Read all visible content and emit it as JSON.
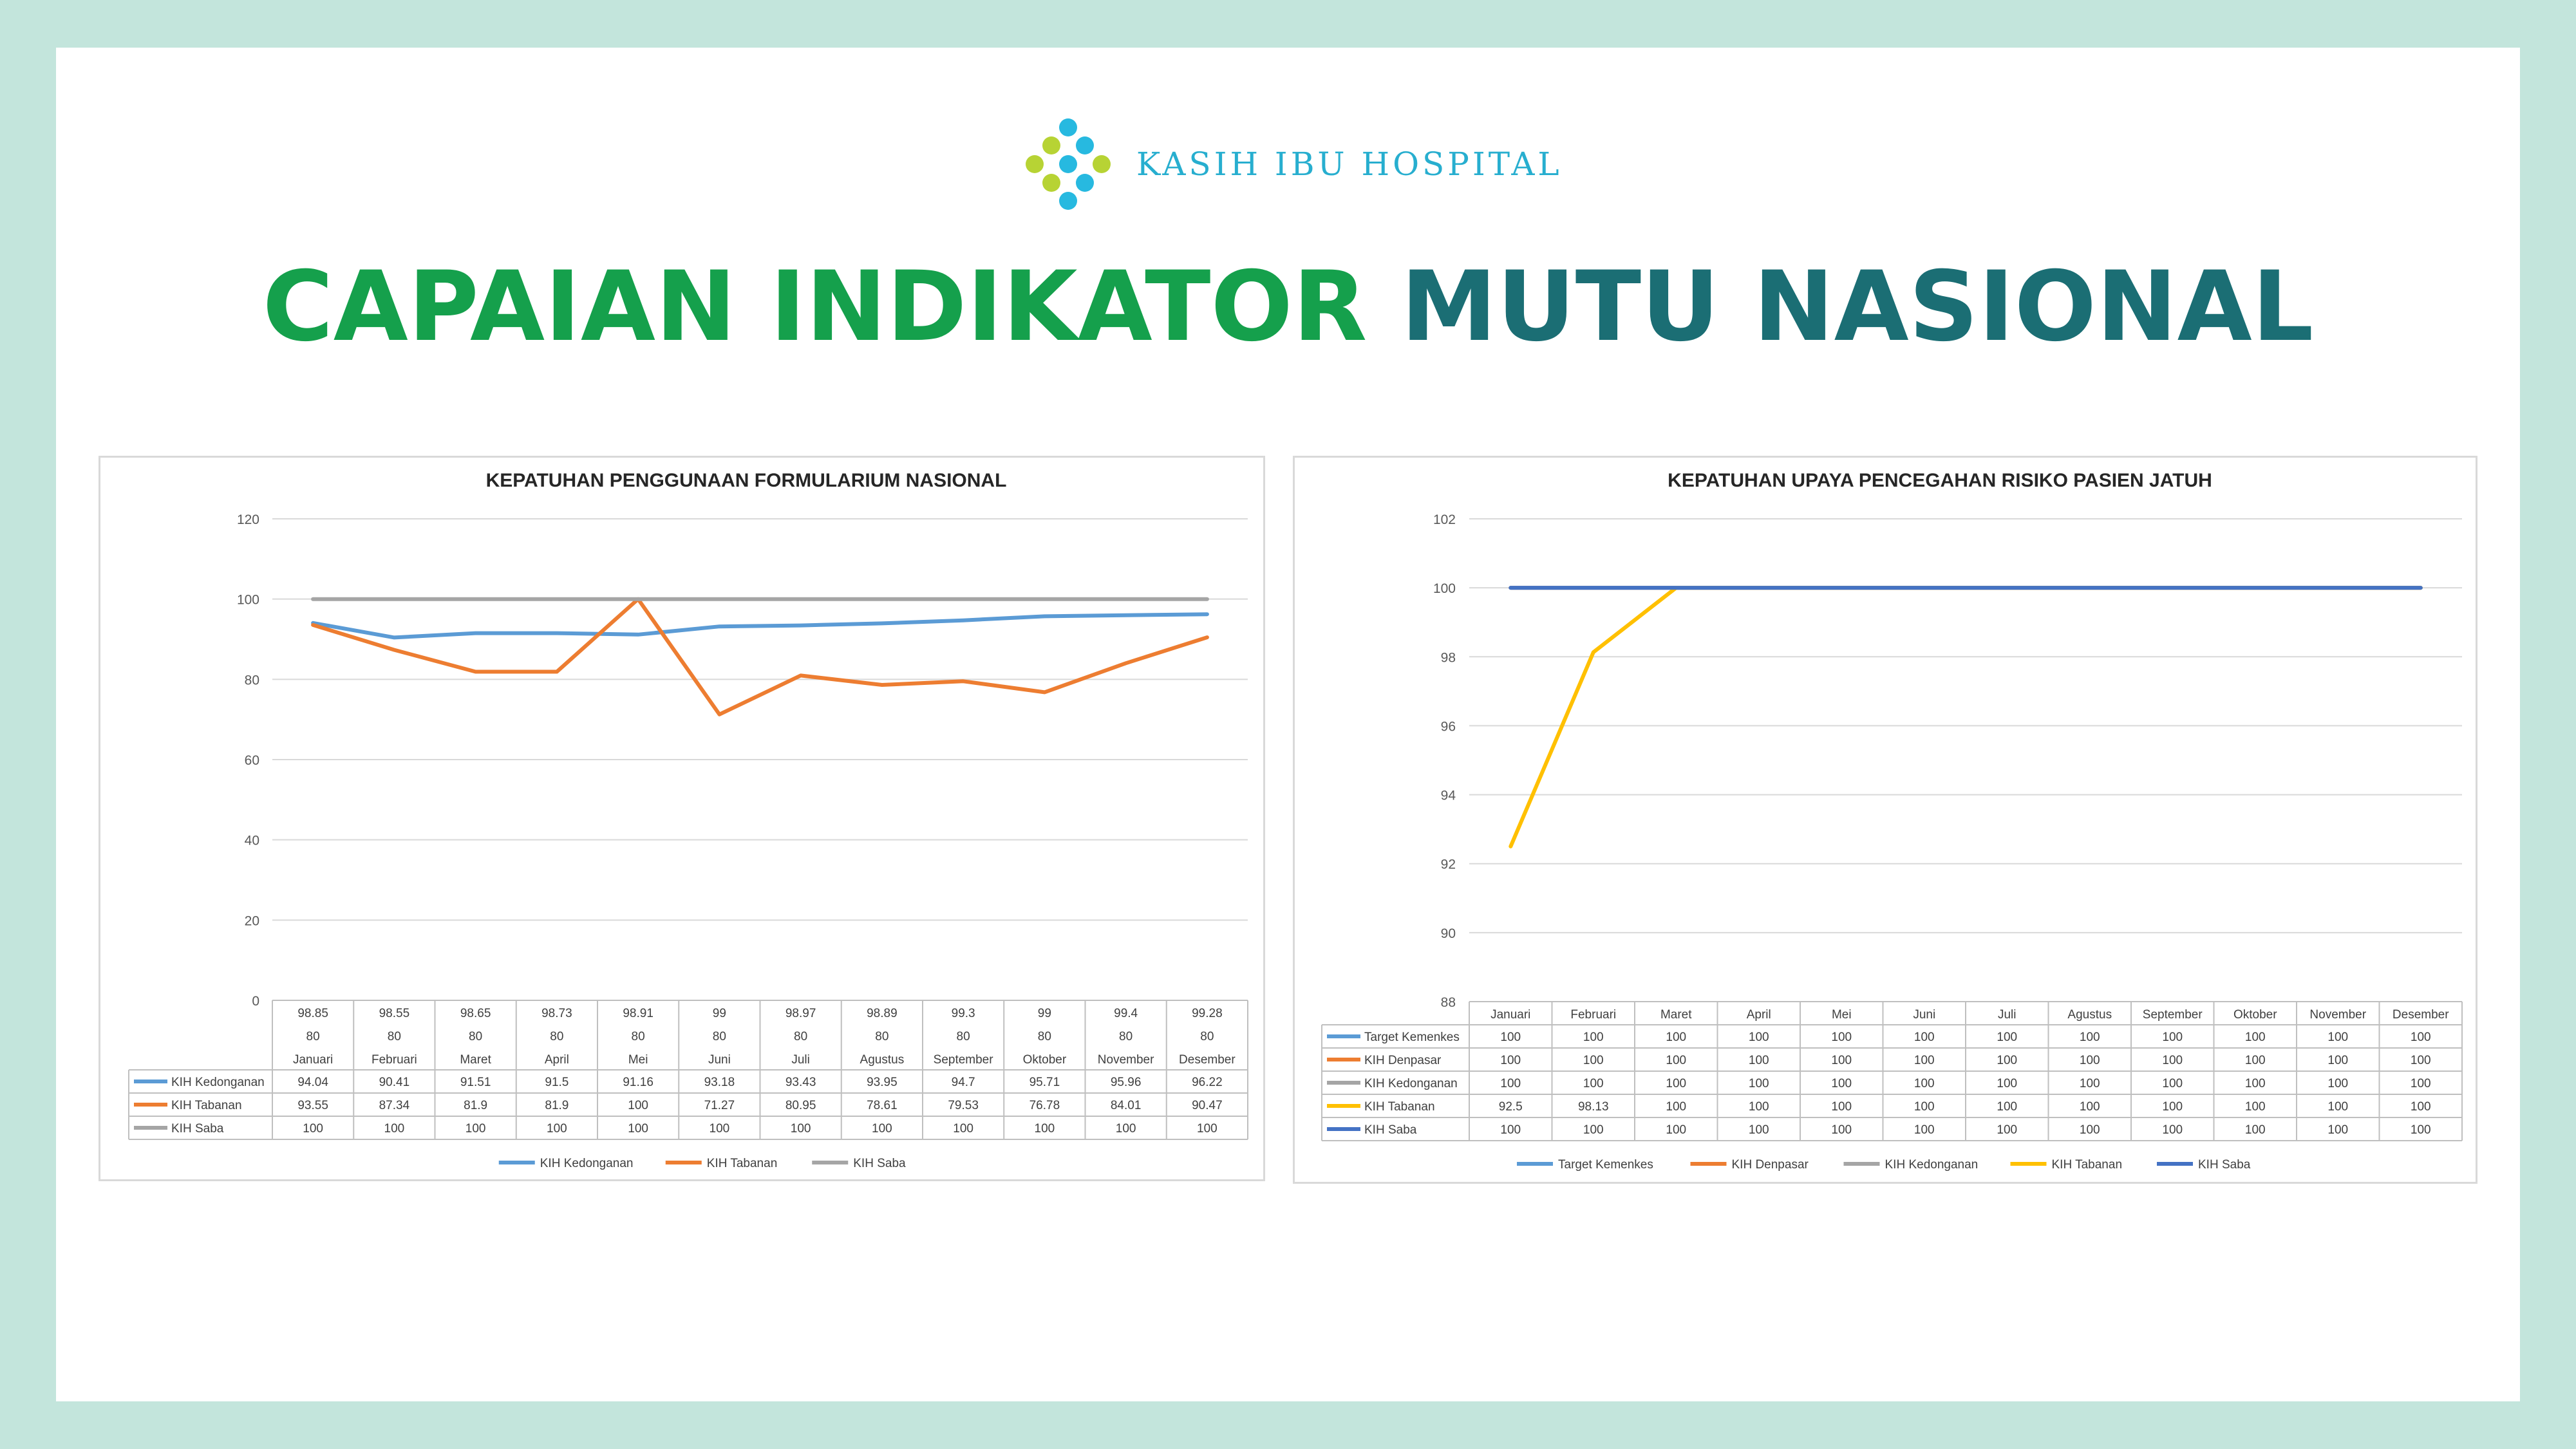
{
  "brand": {
    "name": "KASIH IBU HOSPITAL",
    "logo": "dotted-cross-logo",
    "logo_colors": [
      "#27b9e0",
      "#b7d334"
    ]
  },
  "headline": {
    "part1": "CAPAIAN INDIKATOR",
    "part2": "MUTU NASIONAL"
  },
  "colors": {
    "background": "#c3e5dc",
    "headline_green": "#15a04c",
    "headline_teal": "#1b6e74",
    "brand_blue": "#27aecf"
  },
  "chart_data": [
    {
      "type": "line",
      "title": "KEPATUHAN PENGGUNAAN FORMULARIUM NASIONAL",
      "xlabel": "",
      "ylabel": "",
      "ylim": [
        0,
        120
      ],
      "yticks": [
        0,
        20,
        40,
        60,
        80,
        100,
        120
      ],
      "grid": true,
      "legend": "bottom",
      "categories": [
        "Januari",
        "Februari",
        "Maret",
        "April",
        "Mei",
        "Juni",
        "Juli",
        "Agustus",
        "September",
        "Oktober",
        "November",
        "Desember"
      ],
      "category_extra_rows": [
        [
          "98.85",
          "98.55",
          "98.65",
          "98.73",
          "98.91",
          "99",
          "98.97",
          "98.89",
          "99.3",
          "99",
          "99.4",
          "99.28"
        ],
        [
          "80",
          "80",
          "80",
          "80",
          "80",
          "80",
          "80",
          "80",
          "80",
          "80",
          "80",
          "80"
        ]
      ],
      "series": [
        {
          "name": "KIH Kedonganan",
          "color": "#5b9bd5",
          "values": [
            94.04,
            90.41,
            91.51,
            91.5,
            91.16,
            93.18,
            93.43,
            93.95,
            94.7,
            95.71,
            95.96,
            96.22
          ]
        },
        {
          "name": "KIH Tabanan",
          "color": "#ed7d31",
          "values": [
            93.55,
            87.34,
            81.9,
            81.9,
            100,
            71.27,
            80.95,
            78.61,
            79.53,
            76.78,
            84.01,
            90.47
          ]
        },
        {
          "name": "KIH Saba",
          "color": "#a5a5a5",
          "values": [
            100,
            100,
            100,
            100,
            100,
            100,
            100,
            100,
            100,
            100,
            100,
            100
          ]
        }
      ]
    },
    {
      "type": "line",
      "title": "KEPATUHAN UPAYA PENCEGAHAN RISIKO PASIEN JATUH",
      "xlabel": "",
      "ylabel": "",
      "ylim": [
        88,
        102
      ],
      "yticks": [
        88,
        90,
        92,
        94,
        96,
        98,
        100,
        102
      ],
      "grid": true,
      "legend": "bottom",
      "categories": [
        "Januari",
        "Februari",
        "Maret",
        "April",
        "Mei",
        "Juni",
        "Juli",
        "Agustus",
        "September",
        "Oktober",
        "November",
        "Desember"
      ],
      "series": [
        {
          "name": "Target Kemenkes",
          "color": "#5b9bd5",
          "values": [
            100,
            100,
            100,
            100,
            100,
            100,
            100,
            100,
            100,
            100,
            100,
            100
          ]
        },
        {
          "name": "KIH Denpasar",
          "color": "#ed7d31",
          "values": [
            100,
            100,
            100,
            100,
            100,
            100,
            100,
            100,
            100,
            100,
            100,
            100
          ]
        },
        {
          "name": "KIH Kedonganan",
          "color": "#a5a5a5",
          "values": [
            100,
            100,
            100,
            100,
            100,
            100,
            100,
            100,
            100,
            100,
            100,
            100
          ]
        },
        {
          "name": "KIH Tabanan",
          "color": "#ffc000",
          "values": [
            92.5,
            98.13,
            100,
            100,
            100,
            100,
            100,
            100,
            100,
            100,
            100,
            100
          ]
        },
        {
          "name": "KIH Saba",
          "color": "#4472c4",
          "values": [
            100,
            100,
            100,
            100,
            100,
            100,
            100,
            100,
            100,
            100,
            100,
            100
          ]
        }
      ]
    }
  ]
}
